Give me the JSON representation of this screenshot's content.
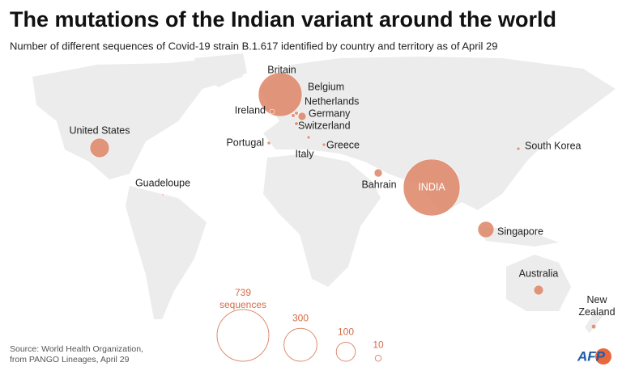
{
  "title": "The mutations of the Indian variant around the world",
  "subtitle": "Number of different sequences of Covid-19 strain B.1.617 identified by country and territory as of April 29",
  "markers": [
    {
      "name": "Britain",
      "value": 526
    },
    {
      "name": "Belgium",
      "value": 4
    },
    {
      "name": "Netherlands",
      "value": 4
    },
    {
      "name": "Ireland",
      "value": 6
    },
    {
      "name": "Germany",
      "value": 18
    },
    {
      "name": "Switzerland",
      "value": 4
    },
    {
      "name": "Portugal",
      "value": 3
    },
    {
      "name": "Italy",
      "value": 3
    },
    {
      "name": "Greece",
      "value": 3
    },
    {
      "name": "United States",
      "value": 104
    },
    {
      "name": "Guadeloupe",
      "value": 1
    },
    {
      "name": "Bahrain",
      "value": 18
    },
    {
      "name": "INDIA",
      "value": 884
    },
    {
      "name": "South Korea",
      "value": 3
    },
    {
      "name": "Singapore",
      "value": 72
    },
    {
      "name": "Australia",
      "value": 26
    },
    {
      "name": "New Zealand",
      "value": 6
    }
  ],
  "legend": {
    "unit": "sequences",
    "values": [
      739,
      300,
      100,
      10
    ]
  },
  "source": [
    "Source: World Health Organization,",
    "from PANGO Lineages, April 29"
  ],
  "logo": "AFP"
}
